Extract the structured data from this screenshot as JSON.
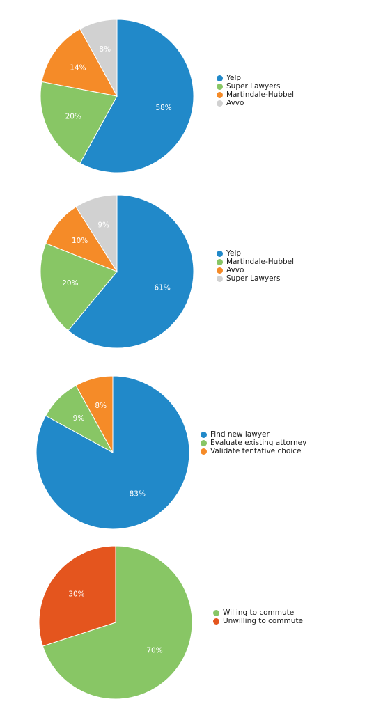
{
  "colors": {
    "blue": "#2189c9",
    "green": "#88c665",
    "orange": "#f58b28",
    "gray": "#d1d1d1",
    "red_orange": "#e4551e"
  },
  "chart_data": [
    {
      "type": "pie",
      "categories": [
        "Yelp",
        "Super Lawyers",
        "Martindale-Hubbell",
        "Avvo"
      ],
      "values": [
        58,
        20,
        14,
        8
      ],
      "labels": [
        "58%",
        "20%",
        "14%",
        "8%"
      ],
      "colors": [
        "#2189c9",
        "#88c665",
        "#f58b28",
        "#d1d1d1"
      ],
      "legend": "right"
    },
    {
      "type": "pie",
      "categories": [
        "Yelp",
        "Martindale-Hubbell",
        "Avvo",
        "Super Lawyers"
      ],
      "values": [
        61,
        20,
        10,
        9
      ],
      "labels": [
        "61%",
        "20%",
        "10%",
        "9%"
      ],
      "colors": [
        "#2189c9",
        "#88c665",
        "#f58b28",
        "#d1d1d1"
      ],
      "legend": "right"
    },
    {
      "type": "pie",
      "categories": [
        "Find new lawyer",
        "Evaluate existing attorney",
        "Validate tentative choice"
      ],
      "values": [
        83,
        9,
        8
      ],
      "labels": [
        "83%",
        "9%",
        "8%"
      ],
      "colors": [
        "#2189c9",
        "#88c665",
        "#f58b28"
      ],
      "legend": "right"
    },
    {
      "type": "pie",
      "categories": [
        "Willing to commute",
        "Unwilling to commute"
      ],
      "values": [
        70,
        30
      ],
      "labels": [
        "70%",
        "30%"
      ],
      "colors": [
        "#88c665",
        "#e4551e"
      ],
      "legend": "right"
    }
  ]
}
